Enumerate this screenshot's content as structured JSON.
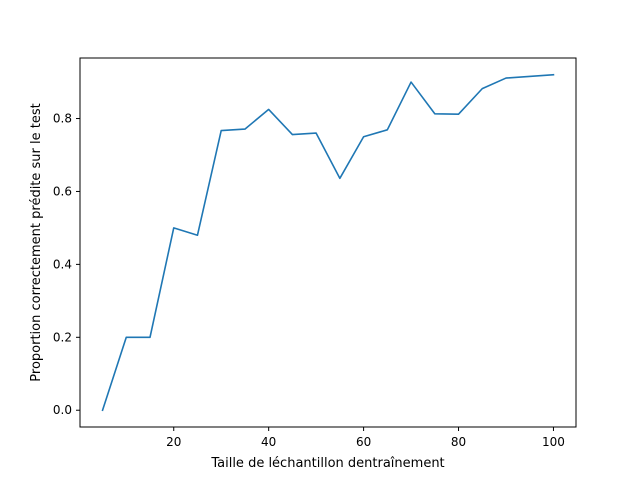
{
  "chart_data": {
    "type": "line",
    "title": "",
    "xlabel": "Taille de léchantillon dentraînement",
    "ylabel": "Proportion correctement prédite sur le test",
    "xlim": [
      0.25,
      104.75
    ],
    "ylim": [
      -0.046,
      0.966
    ],
    "xticks": [
      20,
      40,
      60,
      80,
      100
    ],
    "yticks": [
      0.0,
      0.2,
      0.4,
      0.6,
      0.8
    ],
    "xtick_labels": [
      "20",
      "40",
      "60",
      "80",
      "100"
    ],
    "ytick_labels": [
      "0.0",
      "0.2",
      "0.4",
      "0.6",
      "0.8"
    ],
    "grid": false,
    "series": [
      {
        "color": "#1f77b4",
        "x": [
          5,
          10,
          15,
          20,
          25,
          30,
          35,
          40,
          45,
          50,
          55,
          60,
          65,
          70,
          75,
          80,
          85,
          90,
          100
        ],
        "y": [
          0.0,
          0.2,
          0.2,
          0.5,
          0.48,
          0.767,
          0.771,
          0.825,
          0.756,
          0.76,
          0.636,
          0.75,
          0.769,
          0.9,
          0.813,
          0.812,
          0.882,
          0.911,
          0.92
        ]
      }
    ]
  }
}
